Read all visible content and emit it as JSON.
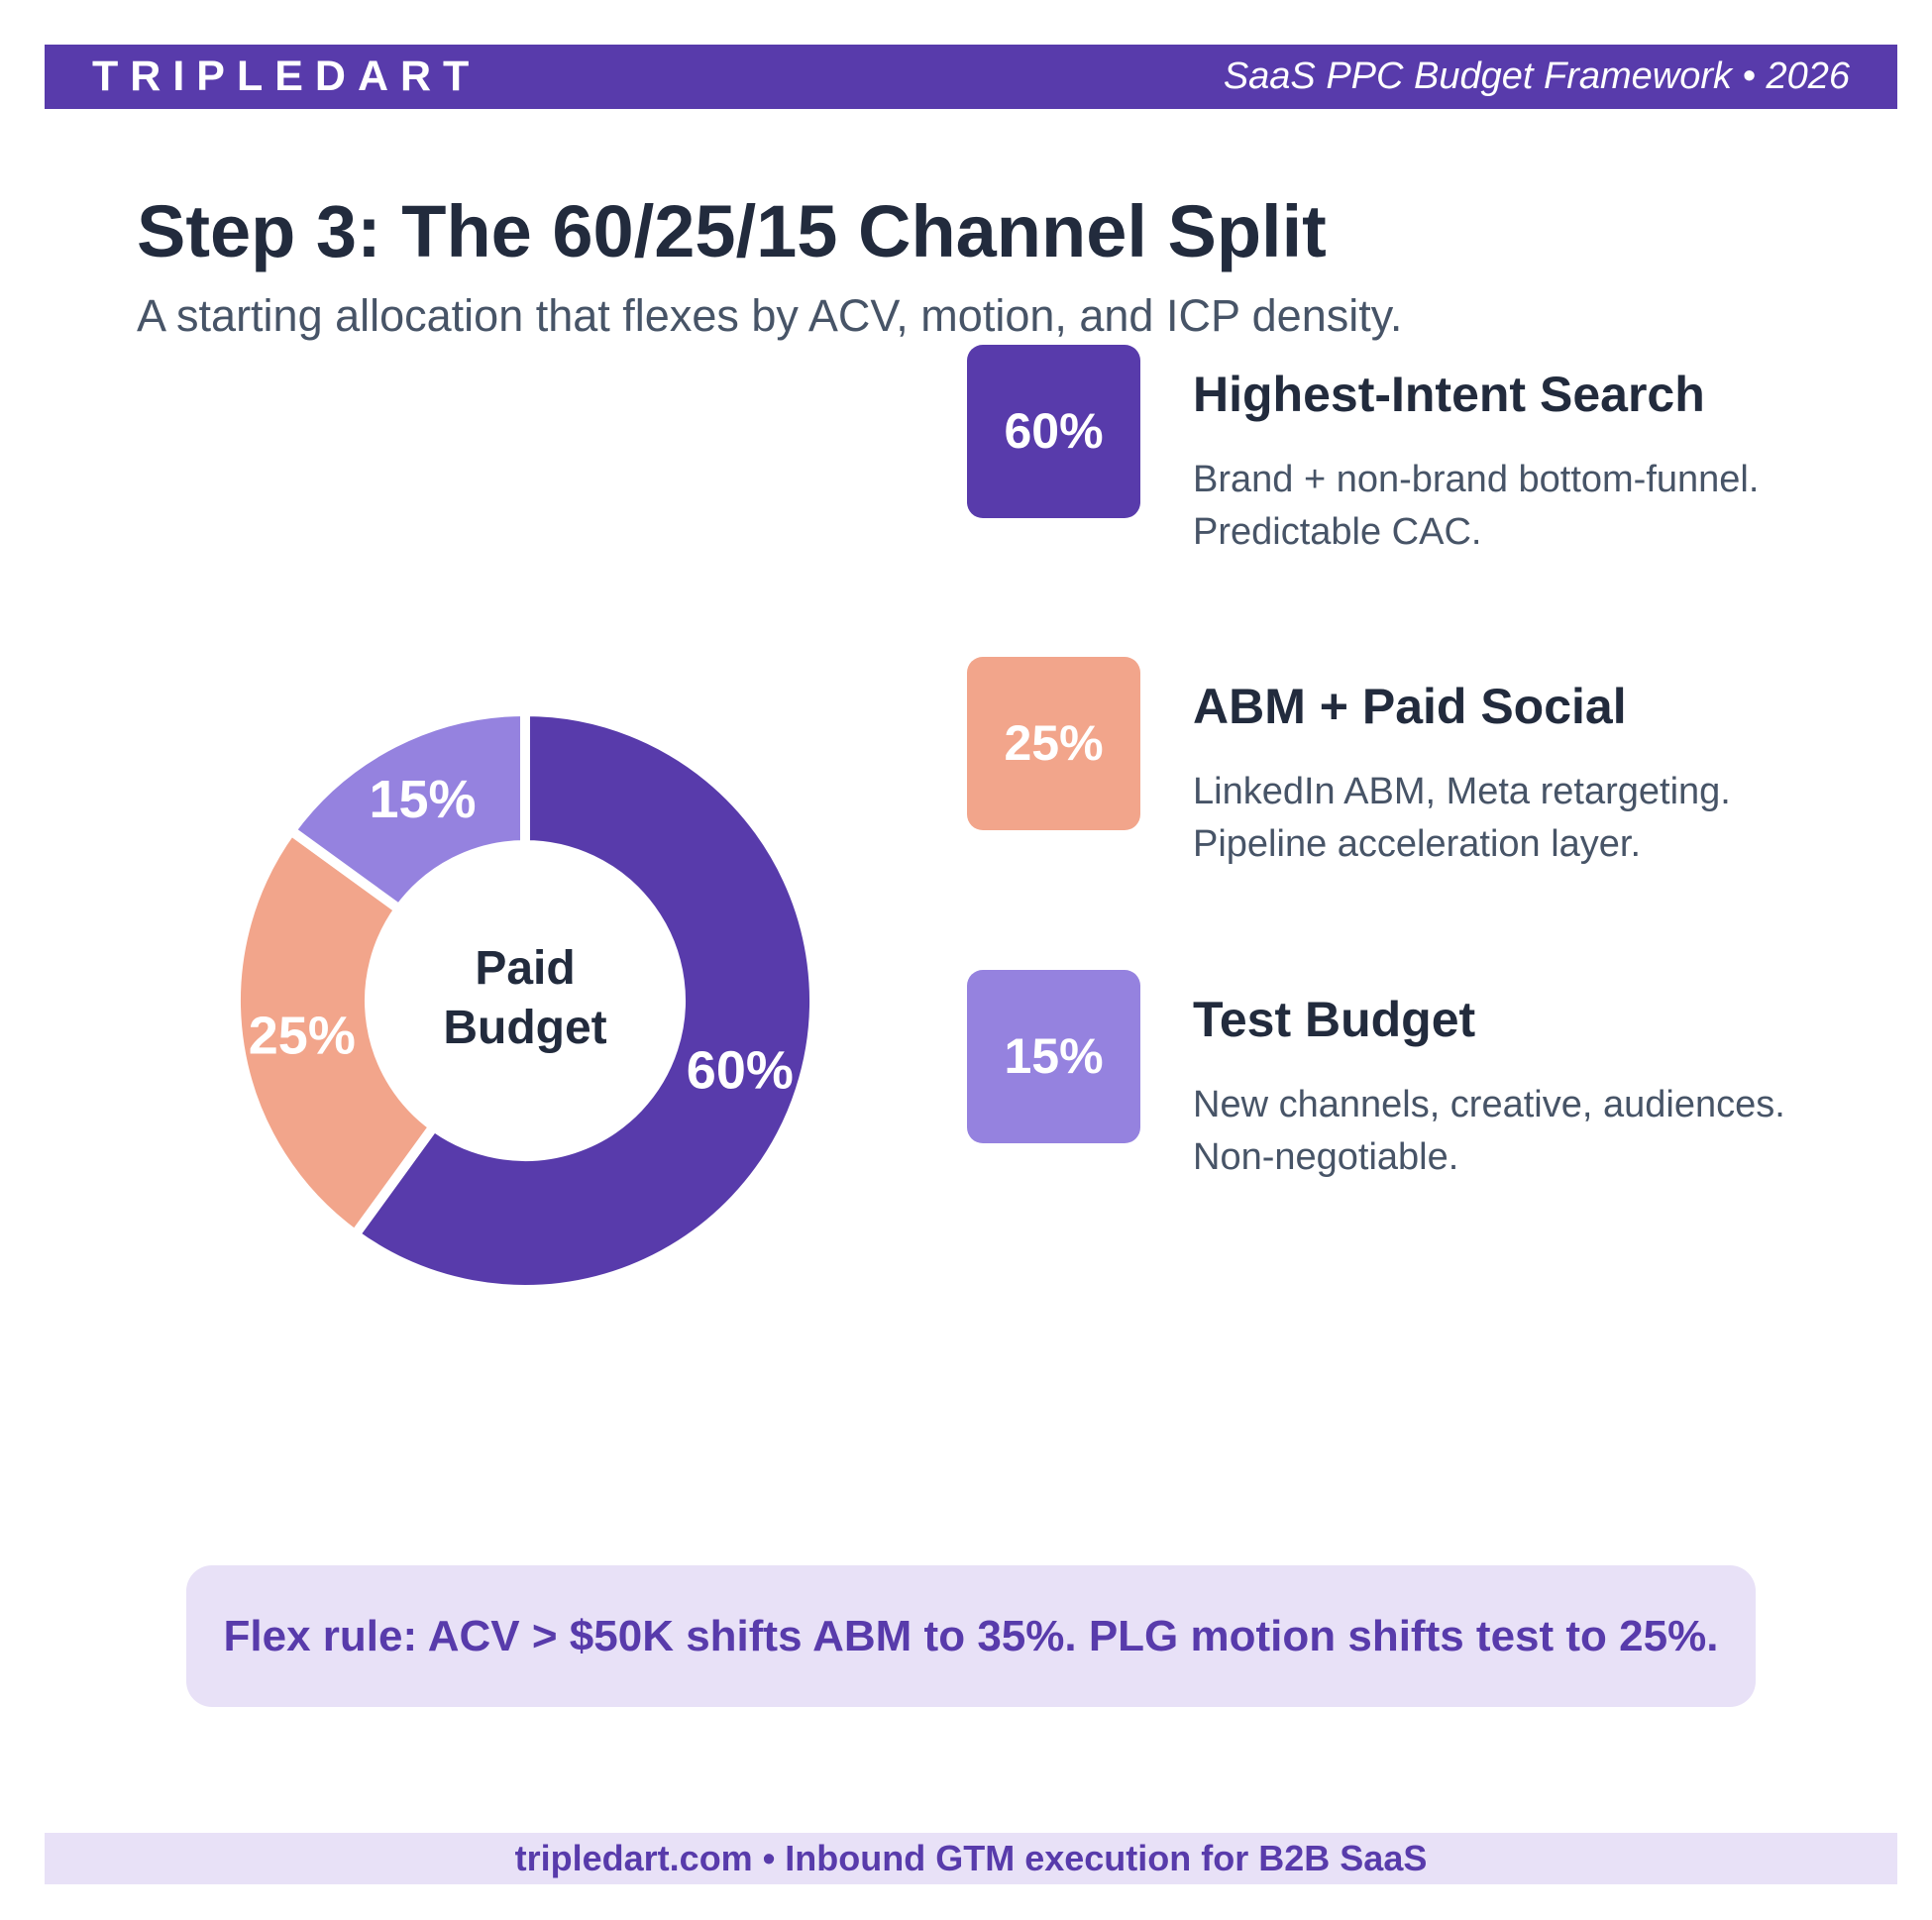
{
  "header": {
    "brand": "TRIPLEDART",
    "right_text": "SaaS PPC Budget Framework  •  2026",
    "bar_color": "#583bab"
  },
  "title": "Step 3: The 60/25/15 Channel Split",
  "subtitle": "A starting allocation that flexes by ACV, motion, and ICP density.",
  "chart_data": {
    "type": "pie",
    "style": "donut",
    "center_label_line1": "Paid",
    "center_label_line2": "Budget",
    "slices": [
      {
        "label": "60%",
        "value": 60,
        "color": "#583bab"
      },
      {
        "label": "25%",
        "value": 25,
        "color": "#f2a58b"
      },
      {
        "label": "15%",
        "value": 15,
        "color": "#9582df"
      }
    ]
  },
  "categories": [
    {
      "percent": "60%",
      "name": "Highest-Intent Search",
      "desc_line1": "Brand + non-brand bottom-funnel.",
      "desc_line2": "Predictable CAC.",
      "color": "#583bab"
    },
    {
      "percent": "25%",
      "name": "ABM + Paid Social",
      "desc_line1": "LinkedIn ABM, Meta retargeting.",
      "desc_line2": "Pipeline acceleration layer.",
      "color": "#f2a58b"
    },
    {
      "percent": "15%",
      "name": "Test Budget",
      "desc_line1": "New channels, creative, audiences.",
      "desc_line2": "Non-negotiable.",
      "color": "#9582df"
    }
  ],
  "flex_rule": "Flex rule: ACV > $50K shifts ABM to 35%. PLG motion shifts test to 25%.",
  "footer": "tripledart.com  •  Inbound GTM execution for B2B SaaS"
}
